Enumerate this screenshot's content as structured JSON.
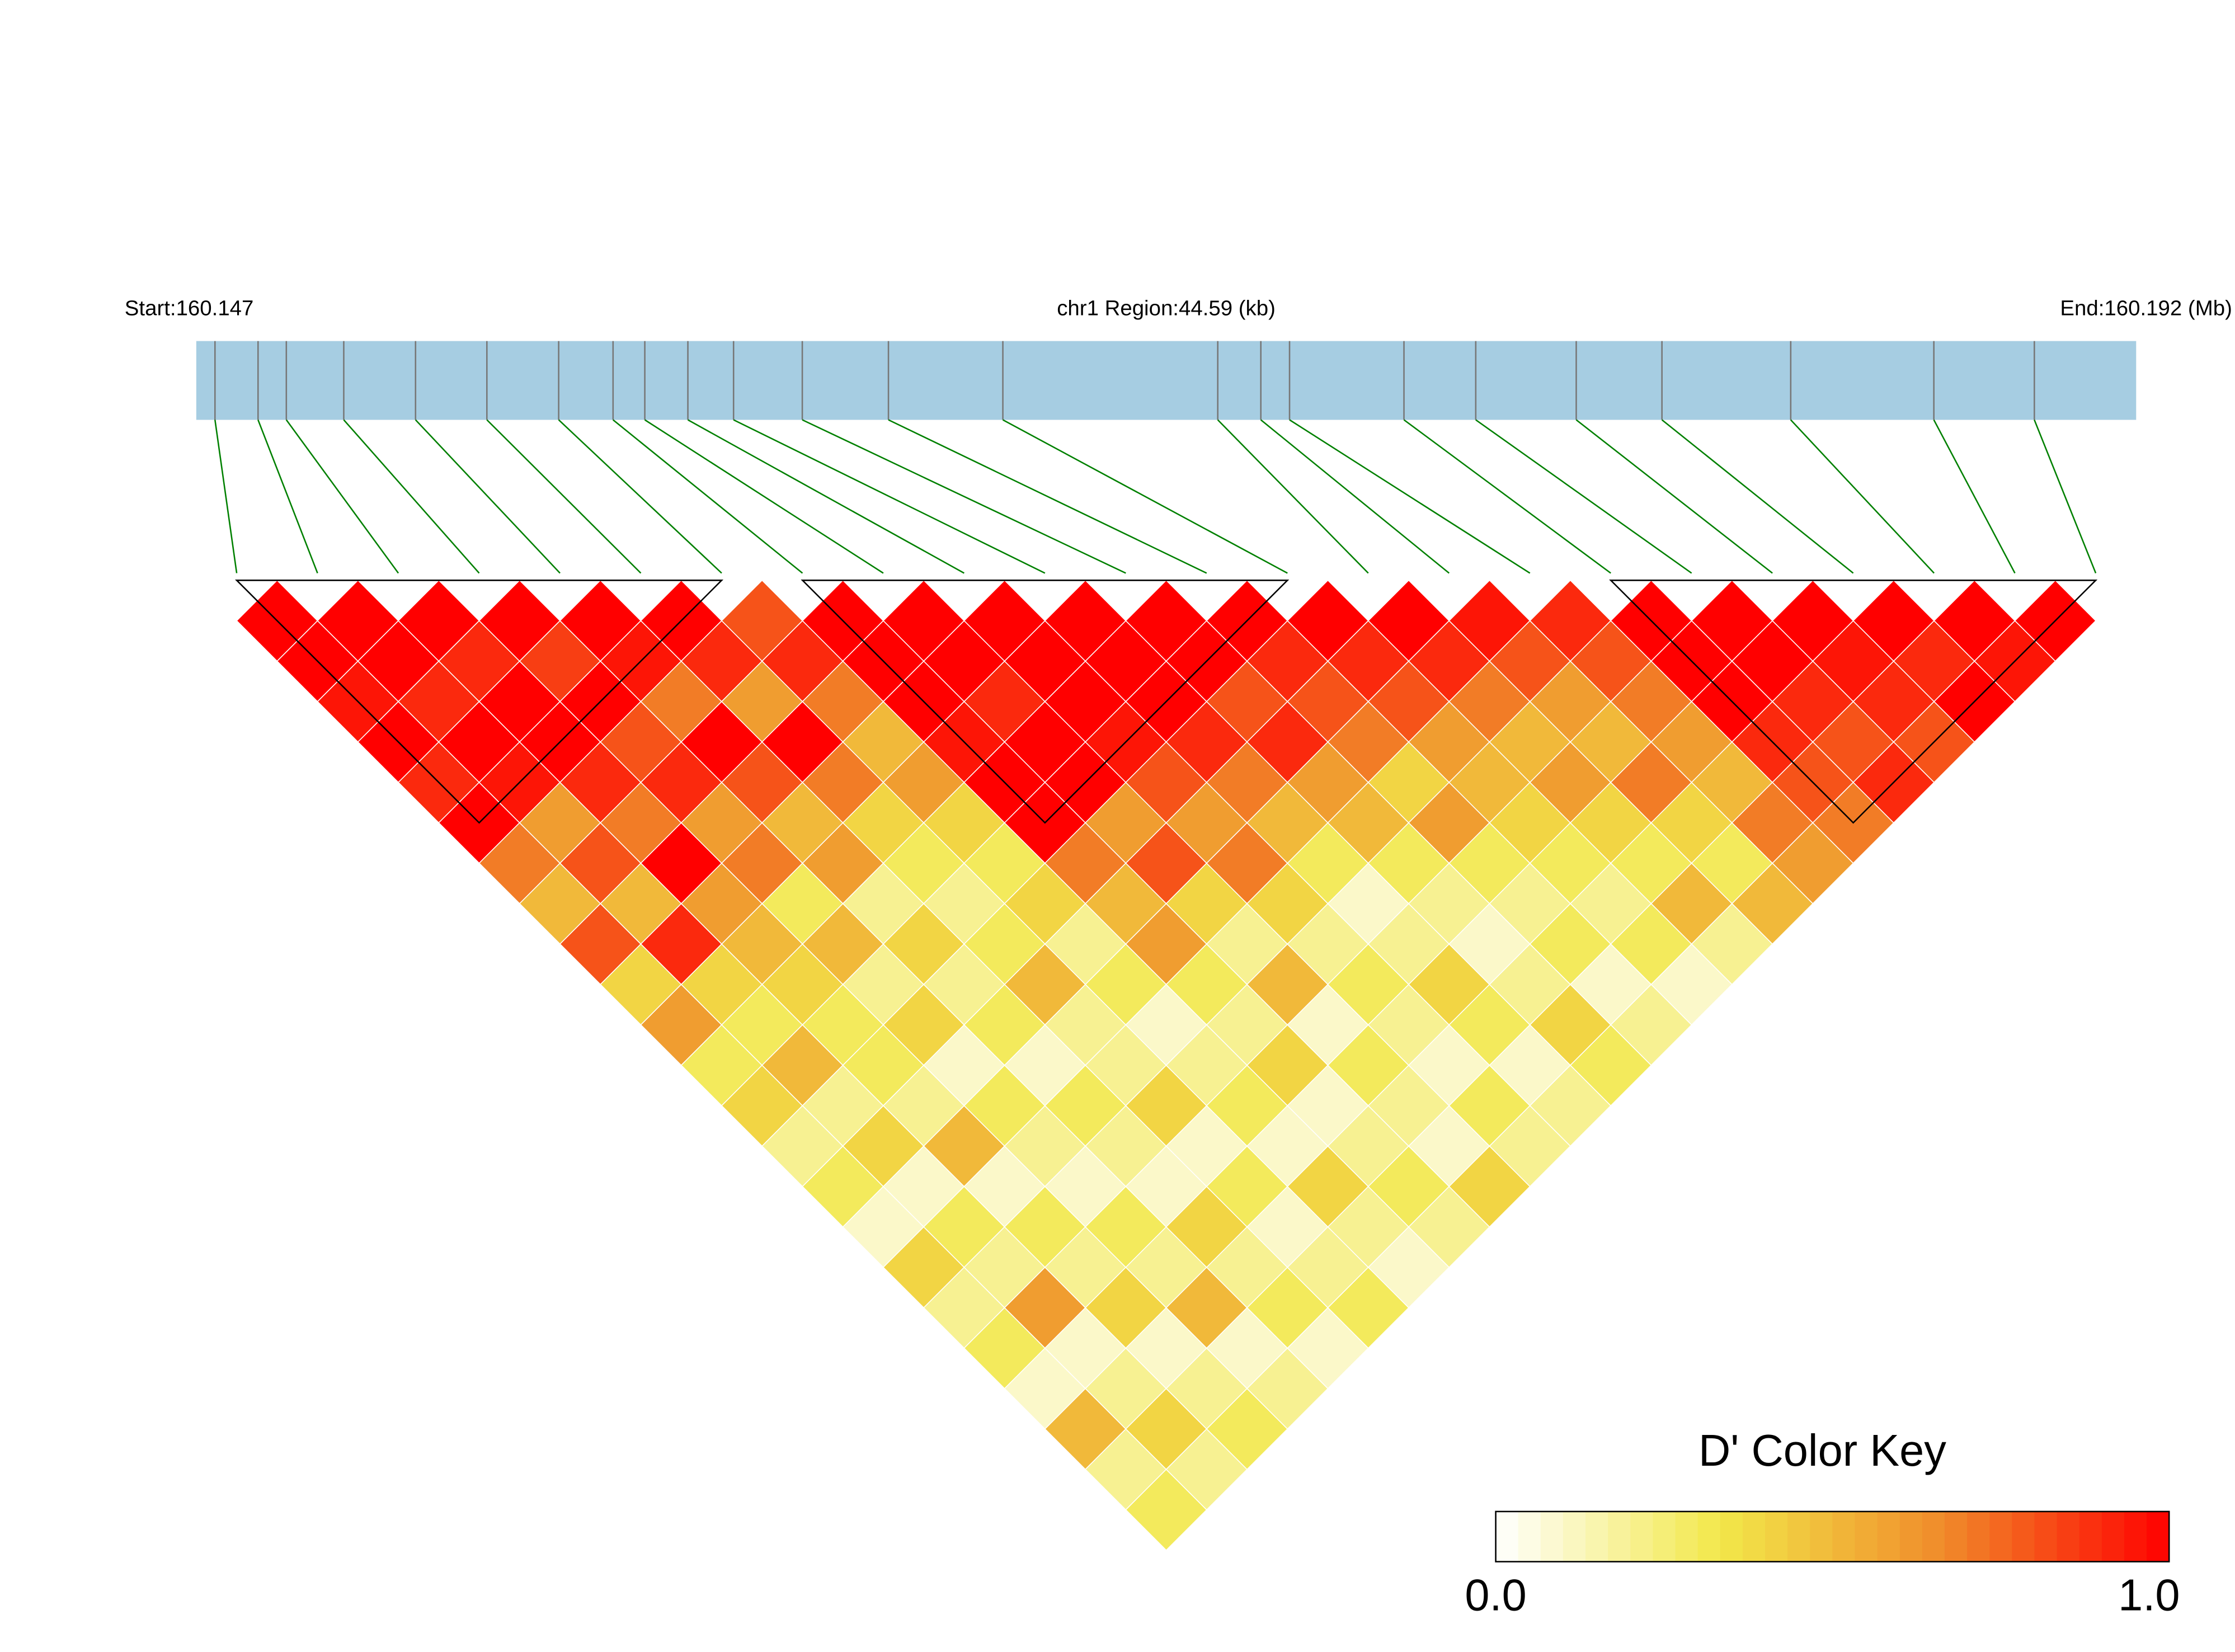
{
  "header": {
    "start": "Start:160.147",
    "region": "chr1 Region:44.59 (kb)",
    "end": "End:160.192 (Mb)"
  },
  "snps": {
    "xlim": [
      0,
      44.59
    ],
    "positions_kb": [
      0.43,
      1.42,
      2.07,
      3.39,
      5.04,
      6.68,
      8.33,
      9.58,
      10.31,
      11.3,
      12.35,
      13.93,
      15.91,
      18.54,
      23.48,
      24.47,
      25.13,
      27.76,
      29.41,
      31.72,
      33.69,
      36.65,
      39.94,
      42.25
    ],
    "track_color": "#a6cde2",
    "tick_color": "#777777",
    "connector_color": "#008000"
  },
  "ld": {
    "d_prime": [
      [
        1,
        1,
        0.95,
        1,
        0.9,
        1,
        0.7,
        0.5,
        0.8,
        0.4,
        0.6,
        0.3,
        0.4,
        0.2,
        0.3,
        0.1,
        0.4,
        0.2,
        0.3,
        0.1,
        0.5,
        0.2,
        0.3
      ],
      [
        1,
        1,
        0.9,
        1,
        0.95,
        0.6,
        0.8,
        0.5,
        0.9,
        0.4,
        0.3,
        0.5,
        0.2,
        0.4,
        0.1,
        0.3,
        0.2,
        0.6,
        0.1,
        0.2,
        0.4,
        0.2
      ],
      [
        1,
        0.9,
        1,
        1,
        0.9,
        0.7,
        1,
        0.6,
        0.5,
        0.4,
        0.3,
        0.3,
        0.2,
        0.5,
        0.1,
        0.3,
        0.2,
        0.4,
        0.1,
        0.2,
        0.3
      ],
      [
        1,
        0.85,
        1,
        0.8,
        0.9,
        0.6,
        0.7,
        0.3,
        0.5,
        0.2,
        0.4,
        0.1,
        0.3,
        0.2,
        0.1,
        0.3,
        0.2,
        0.5,
        0.1,
        0.2
      ],
      [
        1,
        0.95,
        0.7,
        1,
        0.8,
        0.5,
        0.6,
        0.2,
        0.4,
        0.2,
        0.3,
        0.1,
        0.3,
        0.2,
        0.1,
        0.4,
        0.2,
        0.3,
        0.1
      ],
      [
        1,
        0.9,
        0.6,
        1,
        0.7,
        0.4,
        0.3,
        0.2,
        0.3,
        0.5,
        0.2,
        0.2,
        0.4,
        0.1,
        0.3,
        0.1,
        0.2,
        0.3
      ],
      [
        0.8,
        0.9,
        0.7,
        0.5,
        0.6,
        0.4,
        0.3,
        0.4,
        0.2,
        0.3,
        0.1,
        0.2,
        0.3,
        0.1,
        0.4,
        0.2,
        0.1
      ],
      [
        1,
        1,
        1,
        0.95,
        1,
        1,
        0.7,
        0.5,
        0.6,
        0.3,
        0.2,
        0.4,
        0.1,
        0.2,
        0.3,
        0.2
      ],
      [
        1,
        1,
        0.9,
        1,
        1,
        0.6,
        0.8,
        0.4,
        0.2,
        0.5,
        0.1,
        0.3,
        0.2,
        0.1,
        0.4
      ],
      [
        1,
        1,
        1,
        0.95,
        0.8,
        0.6,
        0.7,
        0.4,
        0.2,
        0.3,
        0.2,
        0.1,
        0.3,
        0.2
      ],
      [
        1,
        1,
        1,
        0.9,
        0.7,
        0.5,
        0.3,
        0.1,
        0.2,
        0.4,
        0.3,
        0.1,
        0.2
      ],
      [
        1,
        1,
        0.8,
        0.9,
        0.6,
        0.5,
        0.3,
        0.2,
        0.1,
        0.2,
        0.4,
        0.3
      ],
      [
        1,
        0.9,
        0.8,
        0.7,
        0.4,
        0.6,
        0.3,
        0.2,
        0.3,
        0.1,
        0.2
      ],
      [
        1,
        0.9,
        0.8,
        0.6,
        0.5,
        0.4,
        0.3,
        0.2,
        0.3,
        0.1
      ],
      [
        1,
        0.9,
        0.7,
        0.5,
        0.6,
        0.4,
        0.3,
        0.5,
        0.2
      ],
      [
        0.95,
        0.8,
        0.6,
        0.5,
        0.7,
        0.4,
        0.3,
        0.5
      ],
      [
        0.9,
        0.8,
        0.7,
        0.6,
        0.5,
        0.7,
        0.6
      ],
      [
        1,
        1,
        1,
        0.9,
        0.8,
        0.7
      ],
      [
        1,
        1,
        0.9,
        0.8,
        0.9
      ],
      [
        1,
        0.95,
        0.9,
        0.8
      ],
      [
        1,
        0.9,
        1
      ],
      [
        1,
        0.95
      ],
      [
        1
      ]
    ],
    "blocks": [
      [
        0,
        6
      ],
      [
        7,
        13
      ],
      [
        17,
        23
      ]
    ]
  },
  "color_key": {
    "title": "D' Color Key",
    "min": {
      "value": 0,
      "label": "0.0"
    },
    "max": {
      "value": 1,
      "label": "1.0"
    },
    "colors": [
      "#ffffff",
      "#f2e84a",
      "#f08a2a",
      "#ff0000"
    ]
  }
}
